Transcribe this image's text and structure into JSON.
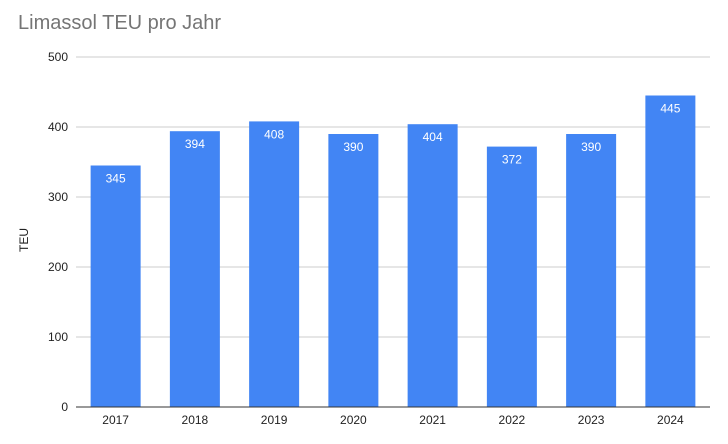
{
  "chart_data": {
    "type": "bar",
    "title": "Limassol TEU pro Jahr",
    "xlabel": "",
    "ylabel": "TEU",
    "categories": [
      "2017",
      "2018",
      "2019",
      "2020",
      "2021",
      "2022",
      "2023",
      "2024"
    ],
    "values": [
      345,
      394,
      408,
      390,
      404,
      372,
      390,
      445
    ],
    "ylim": [
      0,
      500
    ],
    "yticks": [
      0,
      100,
      200,
      300,
      400,
      500
    ],
    "grid": true,
    "legend": "none",
    "bar_color": "#4285f4"
  }
}
